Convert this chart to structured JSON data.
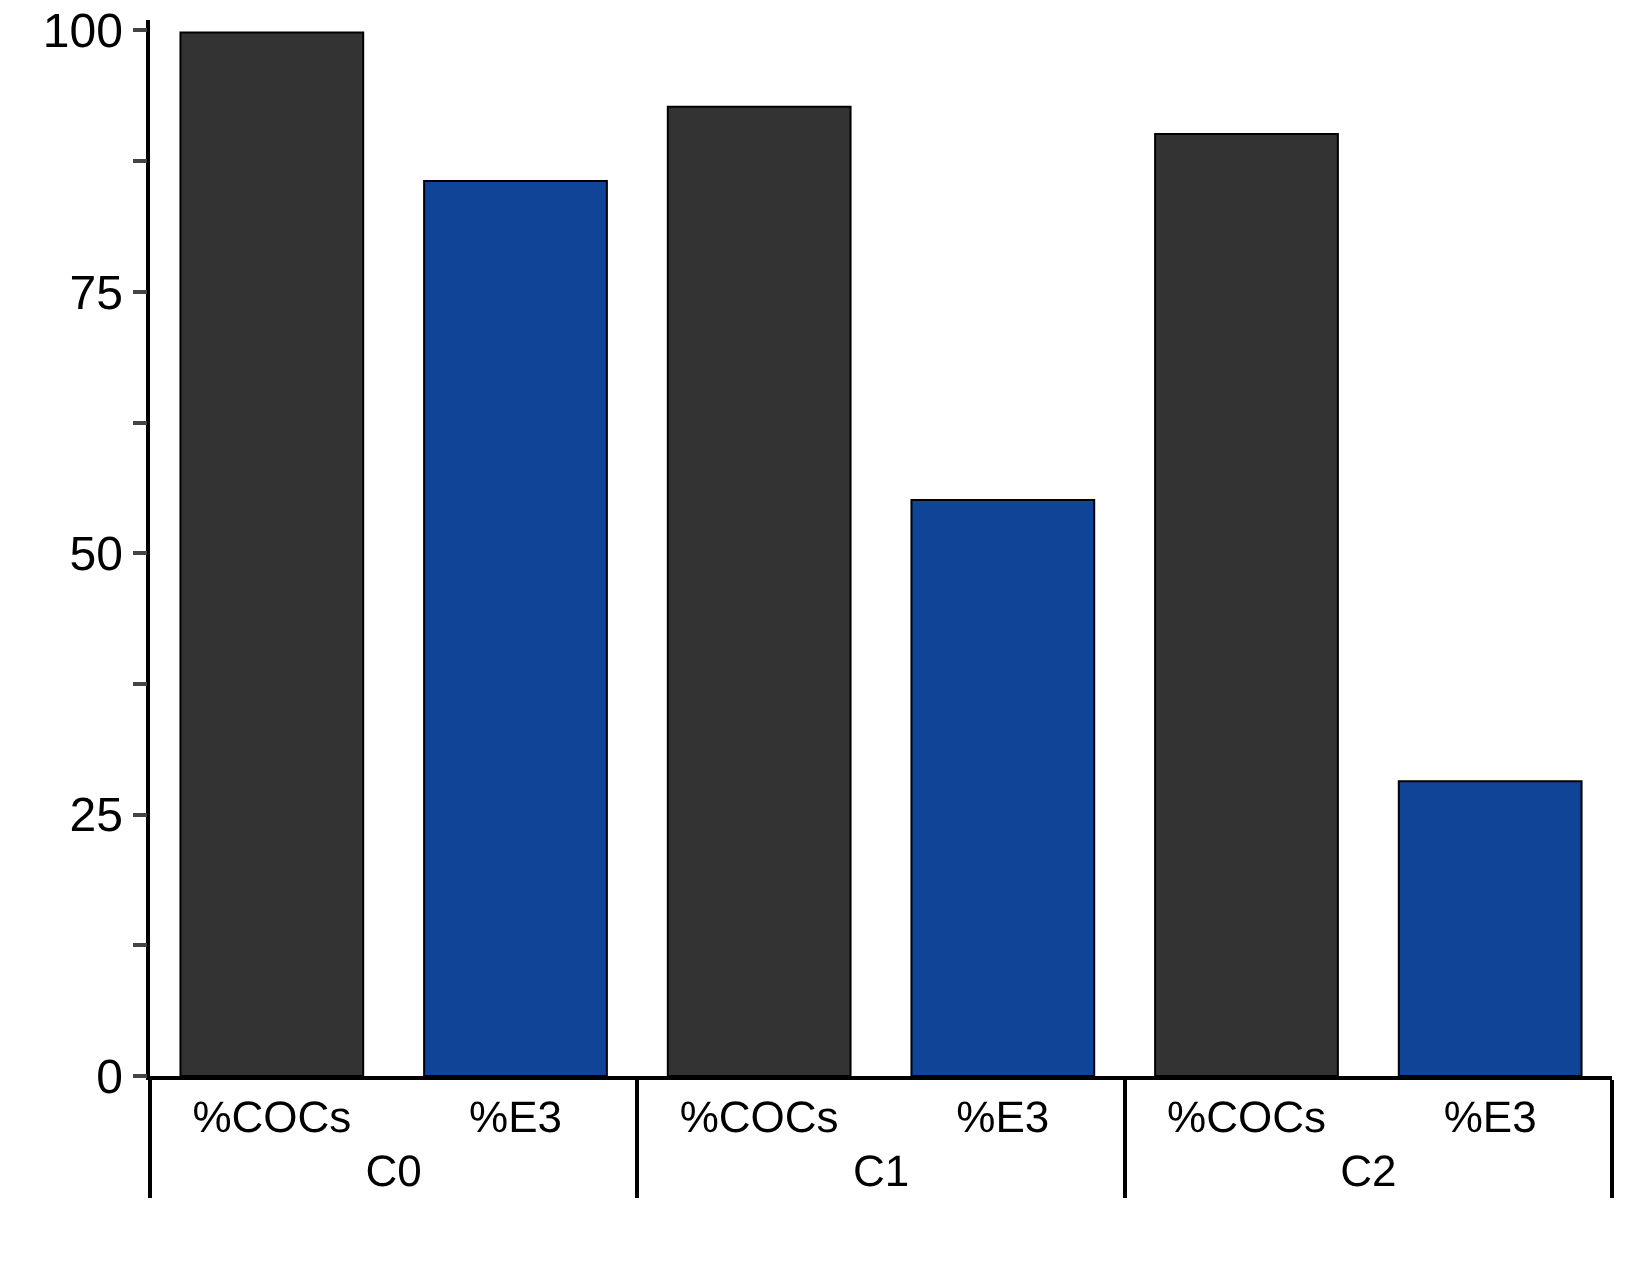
{
  "chart_data": {
    "type": "bar",
    "categories": [
      "C0",
      "C1",
      "C2"
    ],
    "series": [
      {
        "name": "%COCs",
        "color": "#333333",
        "values": [
          99.8,
          92.7,
          90.1
        ]
      },
      {
        "name": "%E3",
        "color": "#0f4496",
        "values": [
          85.6,
          55.1,
          28.2
        ]
      }
    ],
    "ylim": [
      0,
      101
    ],
    "yticks": [
      0,
      {
        "value": 12.5,
        "label": null
      },
      25,
      {
        "value": 37.5,
        "label": null
      },
      50,
      {
        "value": 62.5,
        "label": null
      },
      75,
      {
        "value": 87.5,
        "label": null
      },
      100
    ],
    "grid": false,
    "legend": false
  }
}
